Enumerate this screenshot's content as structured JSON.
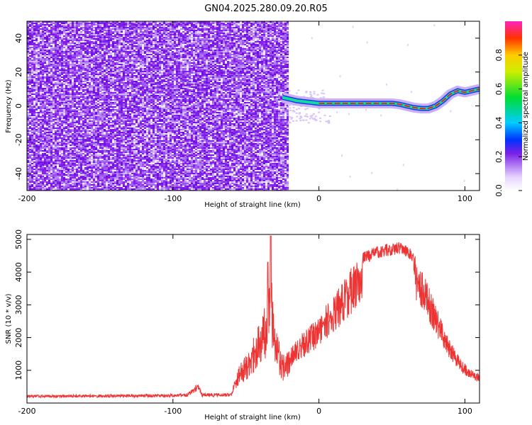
{
  "title": "GN04.2025.280.09.20.R05",
  "chart_data": [
    {
      "type": "heatmap",
      "name": "spectrogram",
      "xlabel": "Height of straight line (km)",
      "ylabel": "Frequency (Hz)",
      "xlim": [
        -200,
        110
      ],
      "ylim": [
        -50,
        50
      ],
      "xticks": [
        "-200",
        "-100",
        "0",
        "100"
      ],
      "yticks": [
        "-40",
        "-20",
        "0",
        "20",
        "40"
      ],
      "noise_region_x": [
        -200,
        -22
      ],
      "signal_track": {
        "x": [
          -25,
          -20,
          -15,
          -10,
          -5,
          0,
          10,
          20,
          30,
          40,
          50,
          55,
          60,
          65,
          70,
          75,
          80,
          85,
          90,
          95,
          100,
          105,
          110
        ],
        "y": [
          5,
          4,
          3,
          2.5,
          2,
          1.5,
          1.5,
          1.5,
          1.5,
          1.5,
          1.5,
          1,
          0,
          -1,
          -1.5,
          -1.5,
          0,
          3,
          7,
          9,
          8,
          9,
          10
        ]
      },
      "colorbar": {
        "label": "Normalized spectral amplitude",
        "range": [
          0,
          1
        ],
        "ticks": [
          "0.0",
          "0.2",
          "0.4",
          "0.6",
          "0.8"
        ]
      }
    },
    {
      "type": "line",
      "name": "snr",
      "xlabel": "Height of straight line (km)",
      "ylabel": "SNR (10 * v/v)",
      "xlim": [
        -200,
        110
      ],
      "ylim": [
        0,
        5150
      ],
      "xticks": [
        "-200",
        "-100",
        "0",
        "100"
      ],
      "yticks": [
        "1000",
        "2000",
        "3000",
        "4000",
        "5000"
      ],
      "color": "#ee3333",
      "envelope": {
        "x": [
          -200,
          -100,
          -90,
          -85,
          -83,
          -80,
          -60,
          -55,
          -50,
          -45,
          -40,
          -35,
          -33,
          -30,
          -25,
          -20,
          -15,
          -10,
          -5,
          0,
          5,
          10,
          15,
          20,
          25,
          30,
          40,
          50,
          55,
          60,
          65,
          70,
          75,
          80,
          85,
          90,
          95,
          100,
          105,
          110
        ],
        "y": [
          250,
          280,
          300,
          500,
          600,
          300,
          300,
          1200,
          1500,
          2000,
          2500,
          3300,
          4300,
          2500,
          1500,
          1600,
          2000,
          2200,
          2400,
          2600,
          3000,
          3300,
          3600,
          4000,
          4300,
          4600,
          4800,
          4900,
          4950,
          4850,
          4600,
          4100,
          3600,
          3000,
          2400,
          1900,
          1500,
          1200,
          1000,
          900
        ]
      },
      "spikes": [
        {
          "x": -33,
          "y": 5100
        },
        {
          "x": -35,
          "y": 4300
        }
      ]
    }
  ]
}
